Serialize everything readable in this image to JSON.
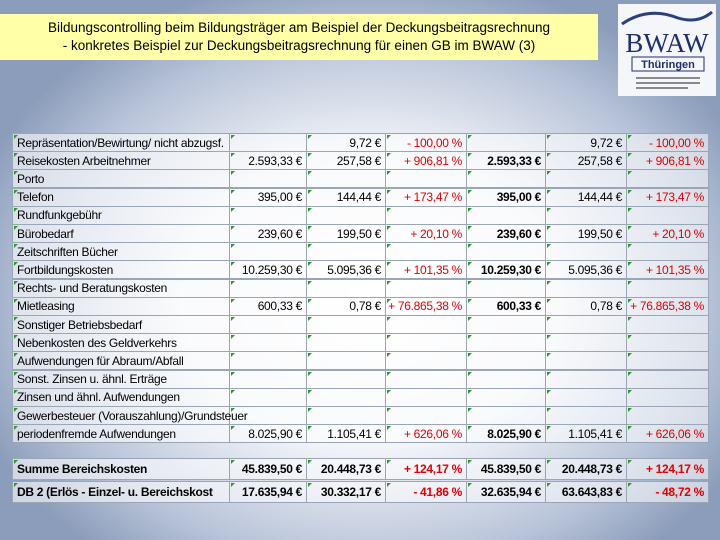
{
  "header": {
    "title_lines": [
      "Bildungscontrolling beim Bildungsträger am Beispiel der Deckungsbeitragsrechnung",
      "- konkretes Beispiel zur Deckungsbeitragsrechnung für einen GB im BWAW (3)"
    ]
  },
  "logo": {
    "name": "BWAW",
    "subtitle": "Thüringen"
  },
  "table": {
    "bold_columns": [
      3
    ],
    "red_columns": [
      2,
      5
    ],
    "rows": [
      {
        "label": "Repräsentation/Bewirtung/ nicht abzugsf.",
        "cells": [
          null,
          "9,72 €",
          "- 100,00 %",
          null,
          "9,72 €",
          "- 100,00 %"
        ]
      },
      {
        "label": "Reisekosten Arbeitnehmer",
        "cells": [
          "2.593,33 €",
          "257,58 €",
          "+ 906,81 %",
          "2.593,33 €",
          "257,58 €",
          "+ 906,81 %"
        ]
      },
      {
        "label": "Porto"
      },
      {
        "label": "Telefon",
        "cells": [
          "395,00 €",
          "144,44 €",
          "+ 173,47 %",
          "395,00 €",
          "144,44 €",
          "+ 173,47 %"
        ]
      },
      {
        "label": "Rundfunkgebühr"
      },
      {
        "label": "Bürobedarf",
        "cells": [
          "239,60 €",
          "199,50 €",
          "+ 20,10 %",
          "239,60 €",
          "199,50 €",
          "+ 20,10 %"
        ]
      },
      {
        "label": "Zeitschriften Bücher"
      },
      {
        "label": "Fortbildungskosten",
        "cells": [
          "10.259,30 €",
          "5.095,36 €",
          "+ 101,35 %",
          "10.259,30 €",
          "5.095,36 €",
          "+ 101,35 %"
        ]
      },
      {
        "label": "Rechts- und Beratungskosten"
      },
      {
        "label": "Mietleasing",
        "cells": [
          "600,33 €",
          "0,78 €",
          "+ 76.865,38 %",
          "600,33 €",
          "0,78 €",
          "+ 76.865,38 %"
        ]
      },
      {
        "label": "Sonstiger Betriebsbedarf"
      },
      {
        "label": "Nebenkosten des Geldverkehrs"
      },
      {
        "label": "Aufwendungen für Abraum/Abfall"
      },
      {
        "label": "Sonst. Zinsen u. ähnl. Erträge"
      },
      {
        "label": "Zinsen und ähnl. Aufwendungen"
      },
      {
        "label": "Gewerbesteuer (Vorauszahlung)/Grundsteuer"
      },
      {
        "label": "periodenfremde Aufwendungen",
        "cells": [
          "8.025,90 €",
          "1.105,41 €",
          "+ 626,06 %",
          "8.025,90 €",
          "1.105,41 €",
          "+ 626,06 %"
        ]
      }
    ],
    "totals": [
      {
        "label": "Summe Bereichskosten",
        "cells": [
          "45.839,50 €",
          "20.448,73 €",
          "+ 124,17 %",
          "45.839,50 €",
          "20.448,73 €",
          "+ 124,17 %"
        ]
      },
      {
        "label": "DB 2 (Erlös - Einzel- u. Bereichskost",
        "cells": [
          "17.635,94 €",
          "30.332,17 €",
          "- 41,86 %",
          "32.635,94 €",
          "63.643,83 €",
          "- 48,72 %"
        ]
      }
    ]
  }
}
